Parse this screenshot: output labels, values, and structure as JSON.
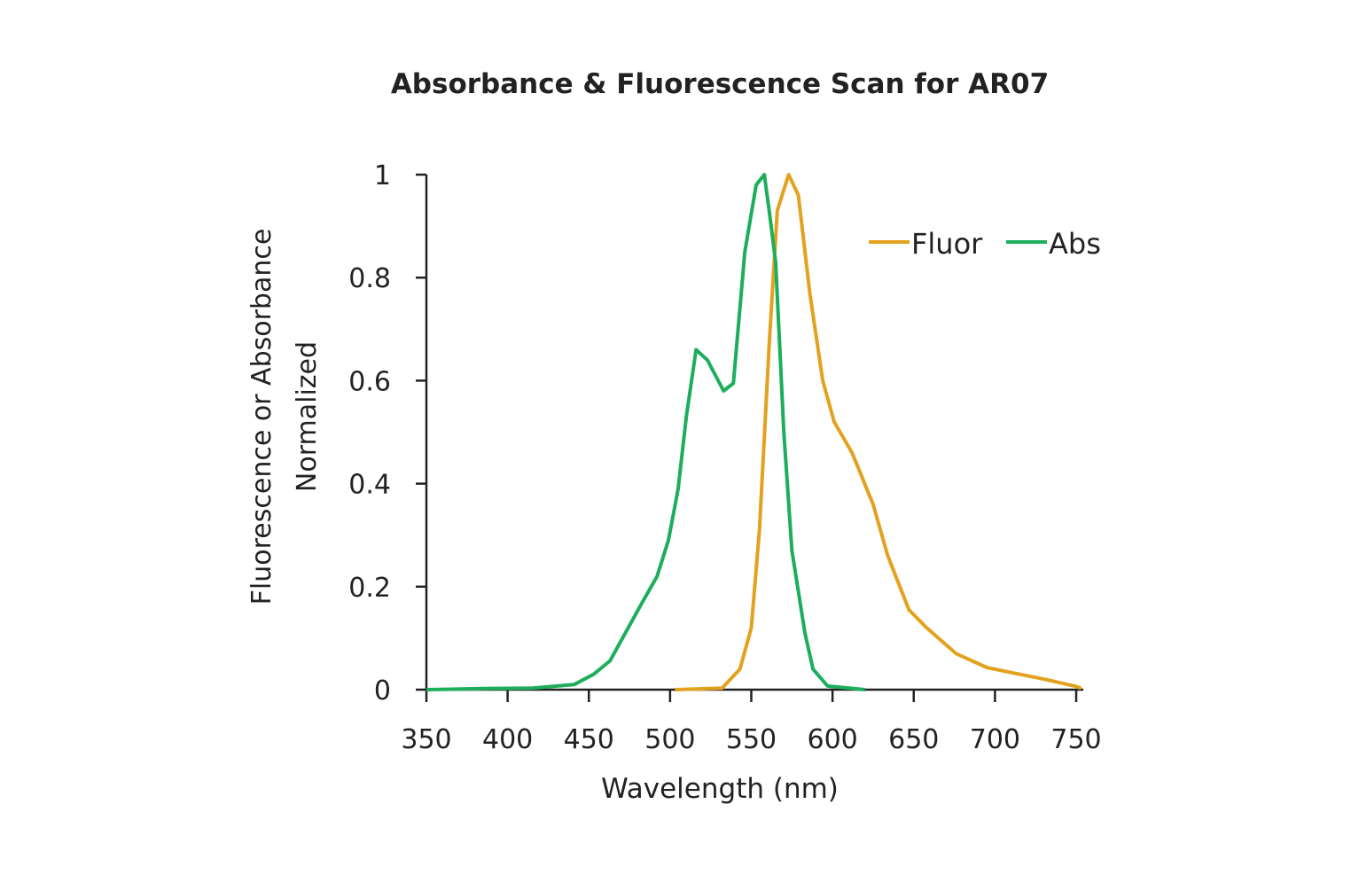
{
  "chart_data": {
    "type": "line",
    "title": "Absorbance & Fluorescence Scan for AR07",
    "xlabel": "Wavelength (nm)",
    "ylabel_lines": [
      "Fluorescence or Absorbance",
      "Normalized"
    ],
    "xlim": [
      350,
      750
    ],
    "ylim": [
      0,
      1
    ],
    "x_ticks": [
      "350",
      "400",
      "450",
      "500",
      "550",
      "600",
      "650",
      "700",
      "750"
    ],
    "y_ticks": [
      "0",
      "0.2",
      "0.4",
      "0.6",
      "0.8",
      "1"
    ],
    "grid": false,
    "legend_position": "top-right",
    "series": [
      {
        "name": "Fluor",
        "color": "#E2A21F",
        "points": [
          [
            503,
            0
          ],
          [
            532,
            0.003
          ],
          [
            543,
            0.04
          ],
          [
            550,
            0.12
          ],
          [
            555,
            0.31
          ],
          [
            561,
            0.67
          ],
          [
            566,
            0.93
          ],
          [
            573,
            1.0
          ],
          [
            579,
            0.96
          ],
          [
            586,
            0.77
          ],
          [
            594,
            0.6
          ],
          [
            601,
            0.52
          ],
          [
            612,
            0.46
          ],
          [
            616,
            0.43
          ],
          [
            621,
            0.39
          ],
          [
            625,
            0.36
          ],
          [
            634,
            0.26
          ],
          [
            647,
            0.155
          ],
          [
            658,
            0.12
          ],
          [
            676,
            0.07
          ],
          [
            695,
            0.043
          ],
          [
            715,
            0.03
          ],
          [
            731,
            0.02
          ],
          [
            749,
            0.007
          ],
          [
            753,
            0.003
          ]
        ]
      },
      {
        "name": "Abs",
        "color": "#1DAE5C",
        "points": [
          [
            350,
            0
          ],
          [
            385,
            0.002
          ],
          [
            415,
            0.003
          ],
          [
            441,
            0.01
          ],
          [
            453,
            0.03
          ],
          [
            463,
            0.056
          ],
          [
            483,
            0.17
          ],
          [
            492,
            0.22
          ],
          [
            499,
            0.29
          ],
          [
            505,
            0.39
          ],
          [
            510,
            0.53
          ],
          [
            516,
            0.66
          ],
          [
            523,
            0.64
          ],
          [
            533,
            0.58
          ],
          [
            539,
            0.595
          ],
          [
            546,
            0.85
          ],
          [
            553,
            0.98
          ],
          [
            558,
            1.0
          ],
          [
            561,
            0.93
          ],
          [
            565,
            0.83
          ],
          [
            570,
            0.5
          ],
          [
            575,
            0.27
          ],
          [
            583,
            0.11
          ],
          [
            588,
            0.04
          ],
          [
            597,
            0.007
          ],
          [
            620,
            0
          ]
        ]
      }
    ]
  }
}
